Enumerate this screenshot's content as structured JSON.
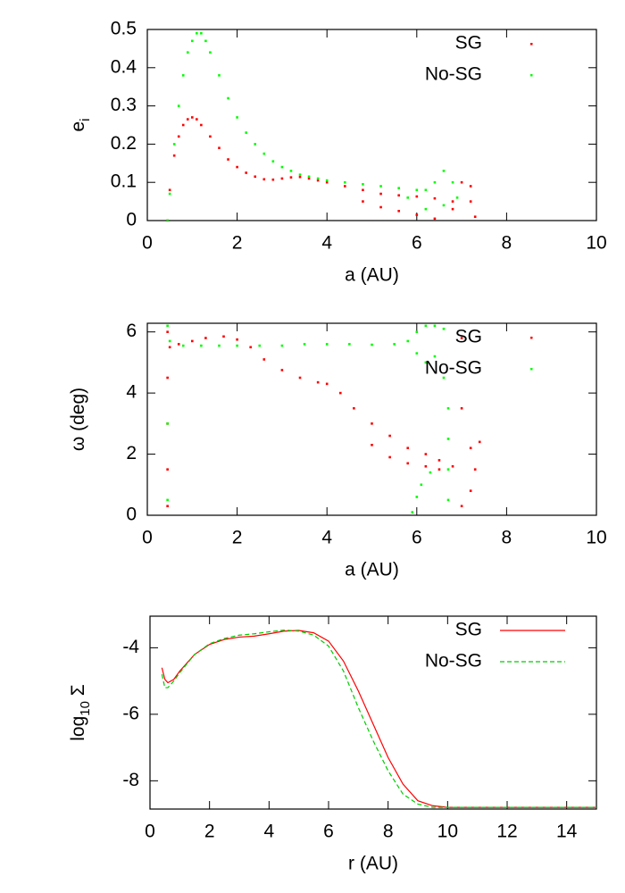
{
  "chart_data": [
    {
      "type": "scatter",
      "xlabel": "a (AU)",
      "ylabel": "e",
      "ylabel_sub": "i",
      "xlim": [
        0,
        10
      ],
      "xticks": [
        0,
        2,
        4,
        6,
        8,
        10
      ],
      "ylim": [
        0,
        0.5
      ],
      "yticks": [
        0,
        0.1,
        0.2,
        0.3,
        0.4,
        0.5
      ],
      "legend": "top-right",
      "series": [
        {
          "name": "SG",
          "color": "#ff0000",
          "x": [
            0.45,
            0.5,
            0.6,
            0.7,
            0.8,
            0.9,
            1.0,
            1.1,
            1.2,
            1.4,
            1.6,
            1.8,
            2.0,
            2.2,
            2.4,
            2.6,
            2.8,
            3.0,
            3.2,
            3.4,
            3.6,
            3.8,
            4.0,
            4.4,
            4.8,
            5.2,
            5.6,
            6.0,
            6.4,
            6.8,
            7.2,
            4.8,
            5.2,
            5.6,
            6.0,
            6.4,
            6.8,
            7.2,
            7.3,
            7.0
          ],
          "y": [
            0.0,
            0.08,
            0.17,
            0.22,
            0.25,
            0.265,
            0.27,
            0.265,
            0.25,
            0.22,
            0.19,
            0.16,
            0.14,
            0.125,
            0.115,
            0.108,
            0.107,
            0.11,
            0.113,
            0.114,
            0.11,
            0.105,
            0.1,
            0.09,
            0.08,
            0.07,
            0.066,
            0.063,
            0.058,
            0.05,
            0.05,
            0.05,
            0.035,
            0.025,
            0.015,
            0.005,
            0.03,
            0.09,
            0.01,
            0.1
          ]
        },
        {
          "name": "No-SG",
          "color": "#00ff00",
          "x": [
            0.45,
            0.5,
            0.6,
            0.7,
            0.8,
            0.9,
            1.0,
            1.1,
            1.2,
            1.3,
            1.4,
            1.6,
            1.8,
            2.0,
            2.2,
            2.4,
            2.6,
            2.8,
            3.0,
            3.2,
            3.4,
            3.6,
            3.8,
            4.0,
            4.4,
            4.8,
            5.2,
            5.6,
            6.0,
            6.2,
            6.4,
            6.6,
            6.8,
            6.9,
            6.2,
            6.6,
            5.8
          ],
          "y": [
            0.0,
            0.07,
            0.2,
            0.3,
            0.38,
            0.44,
            0.47,
            0.49,
            0.49,
            0.47,
            0.44,
            0.38,
            0.32,
            0.27,
            0.23,
            0.2,
            0.175,
            0.155,
            0.14,
            0.13,
            0.12,
            0.115,
            0.11,
            0.105,
            0.1,
            0.095,
            0.09,
            0.085,
            0.08,
            0.08,
            0.1,
            0.13,
            0.1,
            0.06,
            0.03,
            0.04,
            0.06
          ]
        }
      ]
    },
    {
      "type": "scatter",
      "xlabel": "a (AU)",
      "ylabel": "ω (deg)",
      "xlim": [
        0,
        10
      ],
      "xticks": [
        0,
        2,
        4,
        6,
        8,
        10
      ],
      "ylim": [
        0,
        6.283
      ],
      "yticks": [
        0,
        2,
        4,
        6
      ],
      "legend": "top-right",
      "series": [
        {
          "name": "SG",
          "color": "#ff0000",
          "x": [
            0.45,
            0.45,
            0.45,
            0.45,
            0.45,
            0.5,
            0.7,
            1.0,
            1.3,
            1.7,
            2.0,
            2.3,
            2.6,
            3.0,
            3.4,
            3.8,
            4.0,
            4.3,
            4.6,
            5.0,
            5.0,
            5.4,
            5.4,
            5.8,
            5.8,
            6.2,
            6.2,
            6.5,
            6.5,
            6.8,
            7.0,
            7.0,
            7.0,
            7.2,
            7.2,
            7.3,
            7.4
          ],
          "y": [
            0.3,
            1.5,
            3.0,
            4.5,
            6.0,
            5.5,
            5.6,
            5.7,
            5.8,
            5.85,
            5.75,
            5.5,
            5.1,
            4.75,
            4.5,
            4.35,
            4.3,
            4.0,
            3.5,
            3.0,
            2.3,
            2.6,
            1.9,
            2.2,
            1.7,
            2.0,
            1.6,
            1.8,
            1.5,
            1.6,
            0.3,
            3.5,
            5.8,
            0.8,
            2.2,
            1.5,
            2.4
          ]
        },
        {
          "name": "No-SG",
          "color": "#00ff00",
          "x": [
            0.45,
            0.45,
            0.45,
            0.5,
            0.8,
            1.2,
            1.6,
            2.0,
            2.5,
            3.0,
            3.5,
            4.0,
            4.5,
            5.0,
            5.5,
            5.8,
            6.0,
            6.0,
            6.2,
            6.2,
            6.4,
            6.4,
            6.6,
            6.6,
            6.7,
            6.7,
            6.7,
            6.7,
            5.9,
            6.0,
            6.1,
            6.3
          ],
          "y": [
            0.5,
            3.0,
            6.2,
            5.7,
            5.55,
            5.55,
            5.55,
            5.55,
            5.55,
            5.55,
            5.6,
            5.6,
            5.6,
            5.58,
            5.6,
            5.7,
            5.3,
            6.0,
            5.0,
            6.2,
            5.2,
            6.2,
            4.5,
            6.1,
            3.5,
            2.5,
            1.5,
            0.5,
            0.1,
            0.6,
            1.0,
            1.4
          ]
        }
      ]
    },
    {
      "type": "line",
      "xlabel": "r (AU)",
      "ylabel": "log",
      "ylabel_sub": "10",
      "ylabel_after": " Σ",
      "xlim": [
        0,
        15
      ],
      "xticks": [
        0,
        2,
        4,
        6,
        8,
        10,
        12,
        14
      ],
      "ylim": [
        -8.85,
        -3.05
      ],
      "yticks": [
        -4,
        -6,
        -8
      ],
      "legend": "top-right",
      "series": [
        {
          "name": "SG",
          "color": "#ff0000",
          "style": "solid",
          "x": [
            0.4,
            0.5,
            0.6,
            0.8,
            1,
            1.5,
            2,
            2.5,
            3,
            3.5,
            4,
            4.5,
            5,
            5.5,
            6,
            6.5,
            7,
            7.5,
            8,
            8.5,
            9,
            9.5,
            10,
            11,
            12,
            13,
            14,
            15
          ],
          "y": [
            -4.6,
            -4.95,
            -5.05,
            -4.95,
            -4.7,
            -4.2,
            -3.9,
            -3.75,
            -3.68,
            -3.65,
            -3.58,
            -3.5,
            -3.48,
            -3.55,
            -3.8,
            -4.4,
            -5.3,
            -6.3,
            -7.3,
            -8.1,
            -8.6,
            -8.75,
            -8.8,
            -8.8,
            -8.8,
            -8.8,
            -8.8,
            -8.8
          ]
        },
        {
          "name": "No-SG",
          "color": "#00cc00",
          "style": "dashed",
          "x": [
            0.4,
            0.5,
            0.6,
            0.8,
            1,
            1.5,
            2,
            2.5,
            3,
            3.5,
            4,
            4.5,
            5,
            5.5,
            6,
            6.5,
            7,
            7.5,
            8,
            8.5,
            9,
            9.5,
            10,
            11,
            12,
            13,
            14,
            15
          ],
          "y": [
            -4.8,
            -5.2,
            -5.2,
            -5.0,
            -4.75,
            -4.2,
            -3.88,
            -3.72,
            -3.62,
            -3.58,
            -3.52,
            -3.47,
            -3.5,
            -3.62,
            -3.95,
            -4.7,
            -5.8,
            -6.8,
            -7.7,
            -8.4,
            -8.7,
            -8.8,
            -8.8,
            -8.8,
            -8.8,
            -8.8,
            -8.8,
            -8.8
          ]
        }
      ]
    }
  ]
}
